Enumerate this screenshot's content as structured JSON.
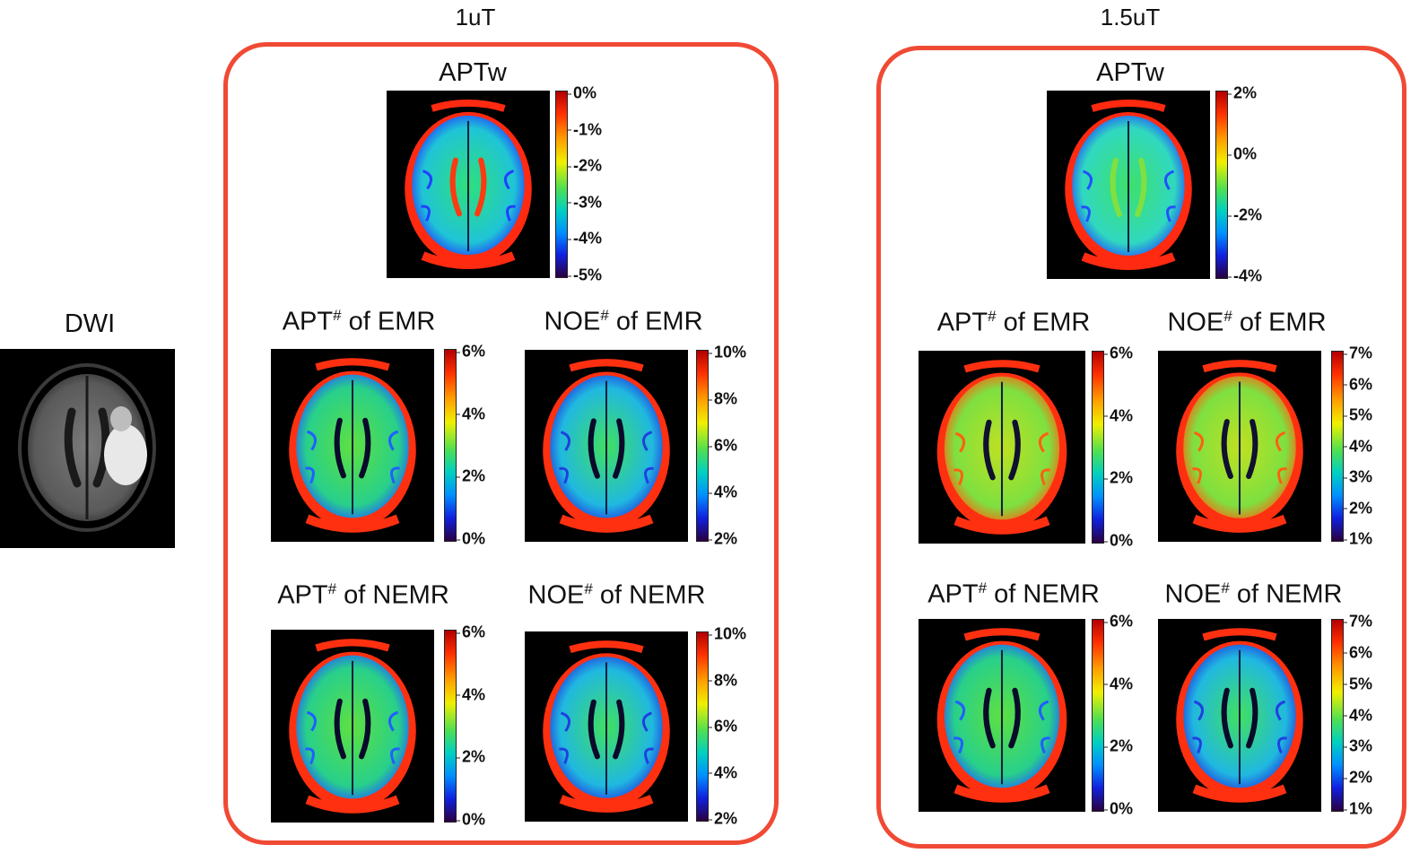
{
  "groups": [
    {
      "id": "g1",
      "title": "1uT"
    },
    {
      "id": "g2",
      "title": "1.5uT"
    }
  ],
  "dwi": {
    "title": "DWI"
  },
  "panels": [
    {
      "id": "p1",
      "group": "g1",
      "title_main": "APTw",
      "title_sup": "",
      "title_rest": "",
      "ticks": [
        "0%",
        "-1%",
        "-2%",
        "-3%",
        "-4%",
        "-5%"
      ],
      "style": "aptw1"
    },
    {
      "id": "p2",
      "group": "g1",
      "title_main": "APT",
      "title_sup": "#",
      "title_rest": " of EMR",
      "ticks": [
        "6%",
        "4%",
        "2%",
        "0%"
      ],
      "style": "green"
    },
    {
      "id": "p3",
      "group": "g1",
      "title_main": "NOE",
      "title_sup": "#",
      "title_rest": " of EMR",
      "ticks": [
        "10%",
        "8%",
        "6%",
        "4%",
        "2%"
      ],
      "style": "blue"
    },
    {
      "id": "p4",
      "group": "g1",
      "title_main": "APT",
      "title_sup": "#",
      "title_rest": " of NEMR",
      "ticks": [
        "6%",
        "4%",
        "2%",
        "0%"
      ],
      "style": "green"
    },
    {
      "id": "p5",
      "group": "g1",
      "title_main": "NOE",
      "title_sup": "#",
      "title_rest": " of NEMR",
      "ticks": [
        "10%",
        "8%",
        "6%",
        "4%",
        "2%"
      ],
      "style": "blue"
    },
    {
      "id": "p6",
      "group": "g2",
      "title_main": "APTw",
      "title_sup": "",
      "title_rest": "",
      "ticks": [
        "2%",
        "0%",
        "-2%",
        "-4%"
      ],
      "style": "aptw2"
    },
    {
      "id": "p7",
      "group": "g2",
      "title_main": "APT",
      "title_sup": "#",
      "title_rest": " of EMR",
      "ticks": [
        "6%",
        "4%",
        "2%",
        "0%"
      ],
      "style": "warm"
    },
    {
      "id": "p8",
      "group": "g2",
      "title_main": "NOE",
      "title_sup": "#",
      "title_rest": " of EMR",
      "ticks": [
        "7%",
        "6%",
        "5%",
        "4%",
        "3%",
        "2%",
        "1%"
      ],
      "style": "warm"
    },
    {
      "id": "p9",
      "group": "g2",
      "title_main": "APT",
      "title_sup": "#",
      "title_rest": " of NEMR",
      "ticks": [
        "6%",
        "4%",
        "2%",
        "0%"
      ],
      "style": "green"
    },
    {
      "id": "p10",
      "group": "g2",
      "title_main": "NOE",
      "title_sup": "#",
      "title_rest": " of NEMR",
      "ticks": [
        "7%",
        "6%",
        "5%",
        "4%",
        "3%",
        "2%",
        "1%"
      ],
      "style": "blue"
    }
  ],
  "colors": {
    "frame": "#f04a35",
    "jet_top": "#c00000",
    "jet_bottom": "#2a0040"
  }
}
